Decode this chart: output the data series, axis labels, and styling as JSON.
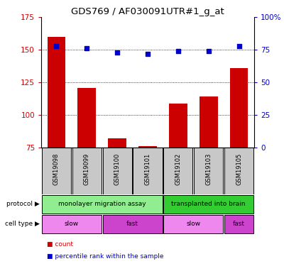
{
  "title": "GDS769 / AF030091UTR#1_g_at",
  "samples": [
    "GSM19098",
    "GSM19099",
    "GSM19100",
    "GSM19101",
    "GSM19102",
    "GSM19103",
    "GSM19105"
  ],
  "counts": [
    160,
    121,
    82,
    76,
    109,
    114,
    136
  ],
  "percentiles": [
    78,
    76,
    73,
    72,
    74,
    74,
    78
  ],
  "ylim_left": [
    75,
    175
  ],
  "ylim_right": [
    0,
    100
  ],
  "yticks_left": [
    75,
    100,
    125,
    150,
    175
  ],
  "yticks_right": [
    0,
    25,
    50,
    75,
    100
  ],
  "yticklabels_right": [
    "0",
    "25",
    "50",
    "75",
    "100%"
  ],
  "bar_color": "#cc0000",
  "dot_color": "#0000cc",
  "protocol_groups": [
    {
      "label": "monolayer migration assay",
      "start": 0,
      "end": 4,
      "color": "#90ee90"
    },
    {
      "label": "transplanted into brain",
      "start": 4,
      "end": 7,
      "color": "#33cc33"
    }
  ],
  "celltype_groups": [
    {
      "label": "slow",
      "start": 0,
      "end": 2,
      "color": "#ee88ee"
    },
    {
      "label": "fast",
      "start": 2,
      "end": 4,
      "color": "#cc44cc"
    },
    {
      "label": "slow",
      "start": 4,
      "end": 6,
      "color": "#ee88ee"
    },
    {
      "label": "fast",
      "start": 6,
      "end": 7,
      "color": "#cc44cc"
    }
  ],
  "legend_items": [
    {
      "label": "count",
      "color": "#cc0000"
    },
    {
      "label": "percentile rank within the sample",
      "color": "#0000cc"
    }
  ],
  "left_label_color": "#cc0000",
  "right_label_color": "#0000cc",
  "grid_color": "#000000",
  "sample_box_color": "#c8c8c8"
}
